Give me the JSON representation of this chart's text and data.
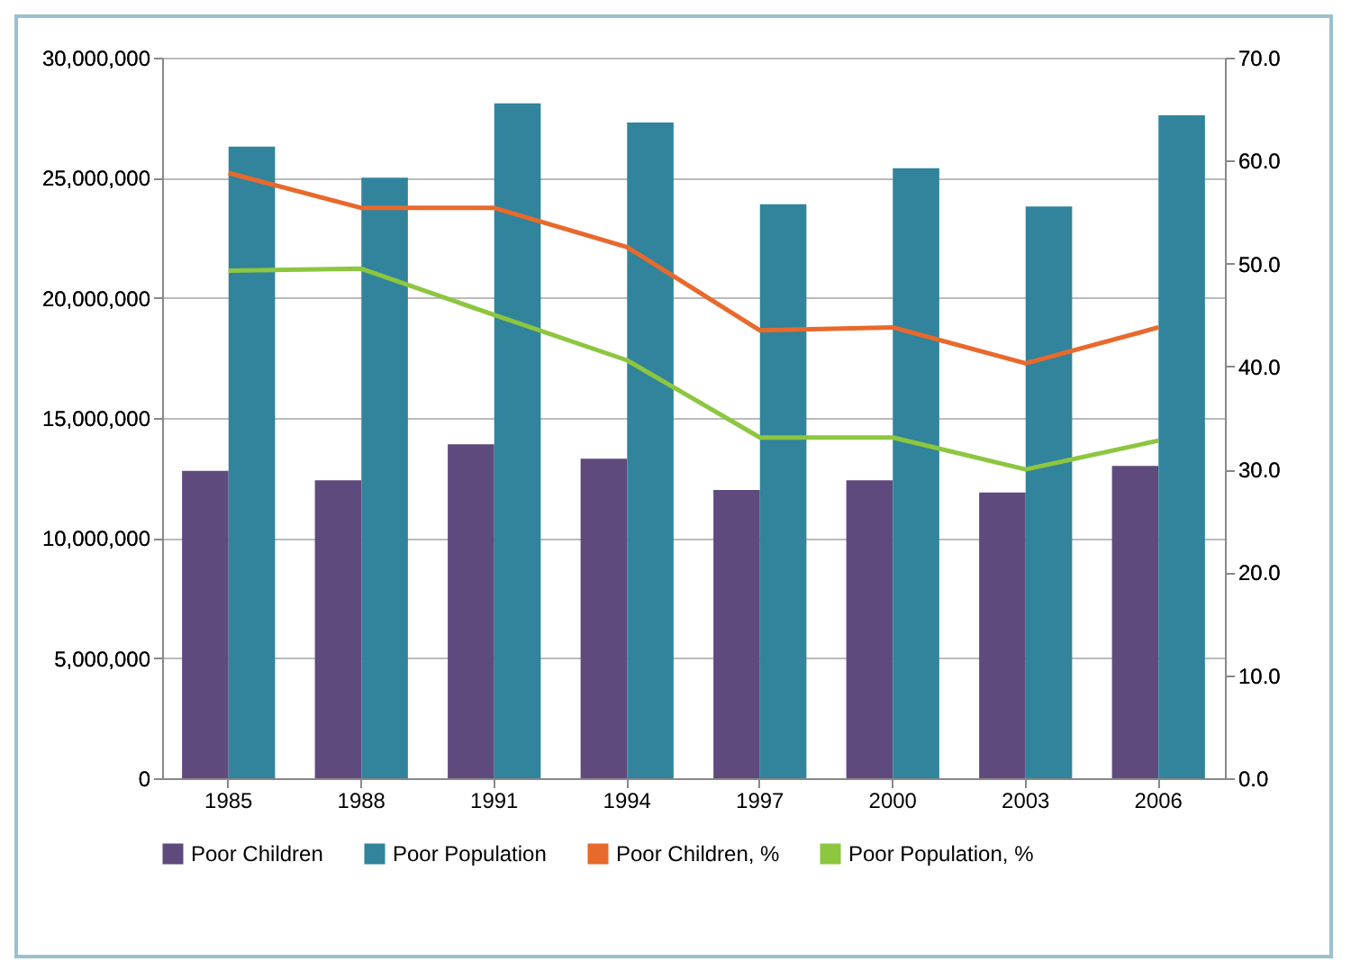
{
  "chart_data": {
    "type": "bar",
    "categories": [
      "1985",
      "1988",
      "1991",
      "1994",
      "1997",
      "2000",
      "2003",
      "2006"
    ],
    "series": [
      {
        "name": "Poor Children",
        "color": "#5f4a7e",
        "values": [
          12800000,
          12400000,
          13900000,
          13300000,
          12000000,
          12400000,
          11900000,
          13000000
        ]
      },
      {
        "name": "Poor Population",
        "color": "#31849b",
        "values": [
          26300000,
          25000000,
          28100000,
          27300000,
          23900000,
          25400000,
          23800000,
          27600000
        ]
      },
      {
        "name": "Poor Children, %",
        "type": "line",
        "axis": "y2",
        "color": "#e8692c",
        "values": [
          58.8,
          55.4,
          55.4,
          51.6,
          43.5,
          43.8,
          40.3,
          43.8
        ]
      },
      {
        "name": "Poor Population, %",
        "type": "line",
        "axis": "y2",
        "color": "#8dc63f",
        "values": [
          49.3,
          49.5,
          45.0,
          40.6,
          33.1,
          33.1,
          30.0,
          32.8
        ]
      }
    ],
    "ylim": [
      0,
      30000000
    ],
    "yticks": [
      {
        "value": 0,
        "label": "0"
      },
      {
        "value": 5000000,
        "label": "5,000,000"
      },
      {
        "value": 10000000,
        "label": "10,000,000"
      },
      {
        "value": 15000000,
        "label": "15,000,000"
      },
      {
        "value": 20000000,
        "label": "20,000,000"
      },
      {
        "value": 25000000,
        "label": "25,000,000"
      },
      {
        "value": 30000000,
        "label": "30,000,000"
      }
    ],
    "y2lim": [
      0,
      70
    ],
    "y2ticks": [
      {
        "value": 0,
        "label": "0.0"
      },
      {
        "value": 10,
        "label": "10.0"
      },
      {
        "value": 20,
        "label": "20.0"
      },
      {
        "value": 30,
        "label": "30.0"
      },
      {
        "value": 40,
        "label": "40.0"
      },
      {
        "value": 50,
        "label": "50.0"
      },
      {
        "value": 60,
        "label": "60.0"
      },
      {
        "value": 70,
        "label": "70.0"
      }
    ],
    "grid": "y",
    "legend": "bottom",
    "marker": "none"
  }
}
